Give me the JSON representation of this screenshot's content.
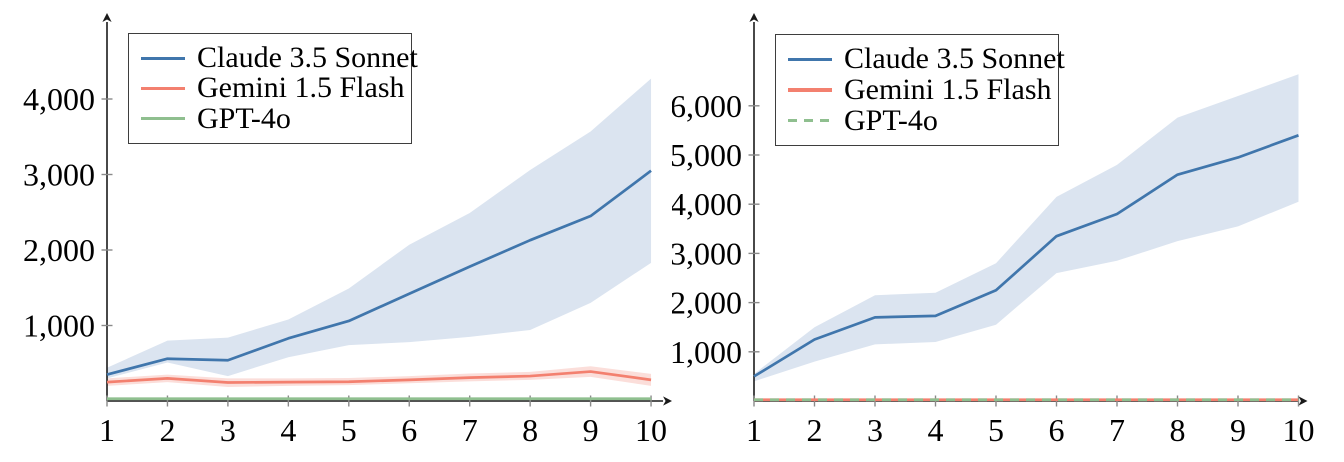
{
  "figure": {
    "background": "#ffffff",
    "axis_color": "#1a1a1a",
    "tick_color": "#8a8a8a",
    "text_color": "#000000"
  },
  "chart_data": [
    {
      "type": "line",
      "title": "",
      "xlabel": "",
      "ylabel": "",
      "grid": false,
      "legend_position": "top-left",
      "x": [
        1,
        2,
        3,
        4,
        5,
        6,
        7,
        8,
        9,
        10
      ],
      "xtick_labels": [
        "1",
        "2",
        "3",
        "4",
        "5",
        "6",
        "7",
        "8",
        "9",
        "10"
      ],
      "ytick_values": [
        1000,
        2000,
        3000,
        4000
      ],
      "ytick_labels": [
        "1,000",
        "2,000",
        "3,000",
        "4,000"
      ],
      "ylim": [
        0,
        5000
      ],
      "xlim": [
        1,
        10
      ],
      "series": [
        {
          "name": "Claude 3.5 Sonnet",
          "color": "#4076ac",
          "band_color": "#dbe4f0",
          "dashed": false,
          "values": [
            350,
            560,
            540,
            830,
            1060,
            1420,
            1780,
            2130,
            2450,
            3050
          ],
          "band_low": [
            300,
            510,
            330,
            580,
            740,
            780,
            850,
            940,
            1300,
            1830
          ],
          "band_high": [
            440,
            800,
            840,
            1080,
            1490,
            2070,
            2490,
            3060,
            3570,
            4270
          ]
        },
        {
          "name": "Gemini 1.5 Flash",
          "color": "#f3806f",
          "band_color": "#fbdeda",
          "dashed": false,
          "values": [
            250,
            300,
            245,
            250,
            255,
            280,
            310,
            330,
            390,
            280
          ],
          "band_low": [
            200,
            250,
            185,
            200,
            210,
            235,
            260,
            280,
            320,
            200
          ],
          "band_high": [
            300,
            350,
            300,
            300,
            305,
            330,
            365,
            385,
            460,
            360
          ]
        },
        {
          "name": "GPT-4o",
          "color": "#8fbf8f",
          "band_color": "#e1efe1",
          "dashed": false,
          "values": [
            30,
            30,
            30,
            30,
            30,
            30,
            30,
            30,
            30,
            30
          ],
          "band_low": [
            12,
            12,
            12,
            12,
            12,
            12,
            12,
            12,
            12,
            12
          ],
          "band_high": [
            48,
            48,
            48,
            48,
            48,
            48,
            48,
            48,
            48,
            48
          ]
        }
      ]
    },
    {
      "type": "line",
      "title": "",
      "xlabel": "",
      "ylabel": "",
      "grid": false,
      "legend_position": "top-left",
      "x": [
        1,
        2,
        3,
        4,
        5,
        6,
        7,
        8,
        9,
        10
      ],
      "xtick_labels": [
        "1",
        "2",
        "3",
        "4",
        "5",
        "6",
        "7",
        "8",
        "9",
        "10"
      ],
      "ytick_values": [
        1000,
        2000,
        3000,
        4000,
        5000,
        6000
      ],
      "ytick_labels": [
        "1,000",
        "2,000",
        "3,000",
        "4,000",
        "5,000",
        "6,000"
      ],
      "ylim": [
        0,
        7700
      ],
      "xlim": [
        1,
        10
      ],
      "series": [
        {
          "name": "Claude 3.5 Sonnet",
          "color": "#4076ac",
          "band_color": "#dbe4f0",
          "dashed": false,
          "values": [
            500,
            1250,
            1700,
            1730,
            2250,
            3350,
            3800,
            4600,
            4950,
            5400
          ],
          "band_low": [
            400,
            800,
            1150,
            1200,
            1550,
            2600,
            2850,
            3250,
            3550,
            4050
          ],
          "band_high": [
            550,
            1500,
            2150,
            2200,
            2800,
            4150,
            4800,
            5760,
            6200,
            6640
          ]
        },
        {
          "name": "Gemini 1.5 Flash",
          "color": "#f3806f",
          "band_color": "#fbdeda",
          "dashed": false,
          "values": [
            25,
            25,
            25,
            25,
            25,
            25,
            25,
            25,
            25,
            25
          ],
          "band_low": [
            10,
            10,
            10,
            10,
            10,
            10,
            10,
            10,
            10,
            10
          ],
          "band_high": [
            40,
            40,
            40,
            40,
            40,
            40,
            40,
            40,
            40,
            40
          ]
        },
        {
          "name": "GPT-4o",
          "color": "#8fbf8f",
          "band_color": "#e1efe1",
          "dashed": true,
          "values": [
            25,
            25,
            25,
            25,
            25,
            25,
            25,
            25,
            25,
            25
          ],
          "band_low": null,
          "band_high": null
        }
      ]
    }
  ]
}
